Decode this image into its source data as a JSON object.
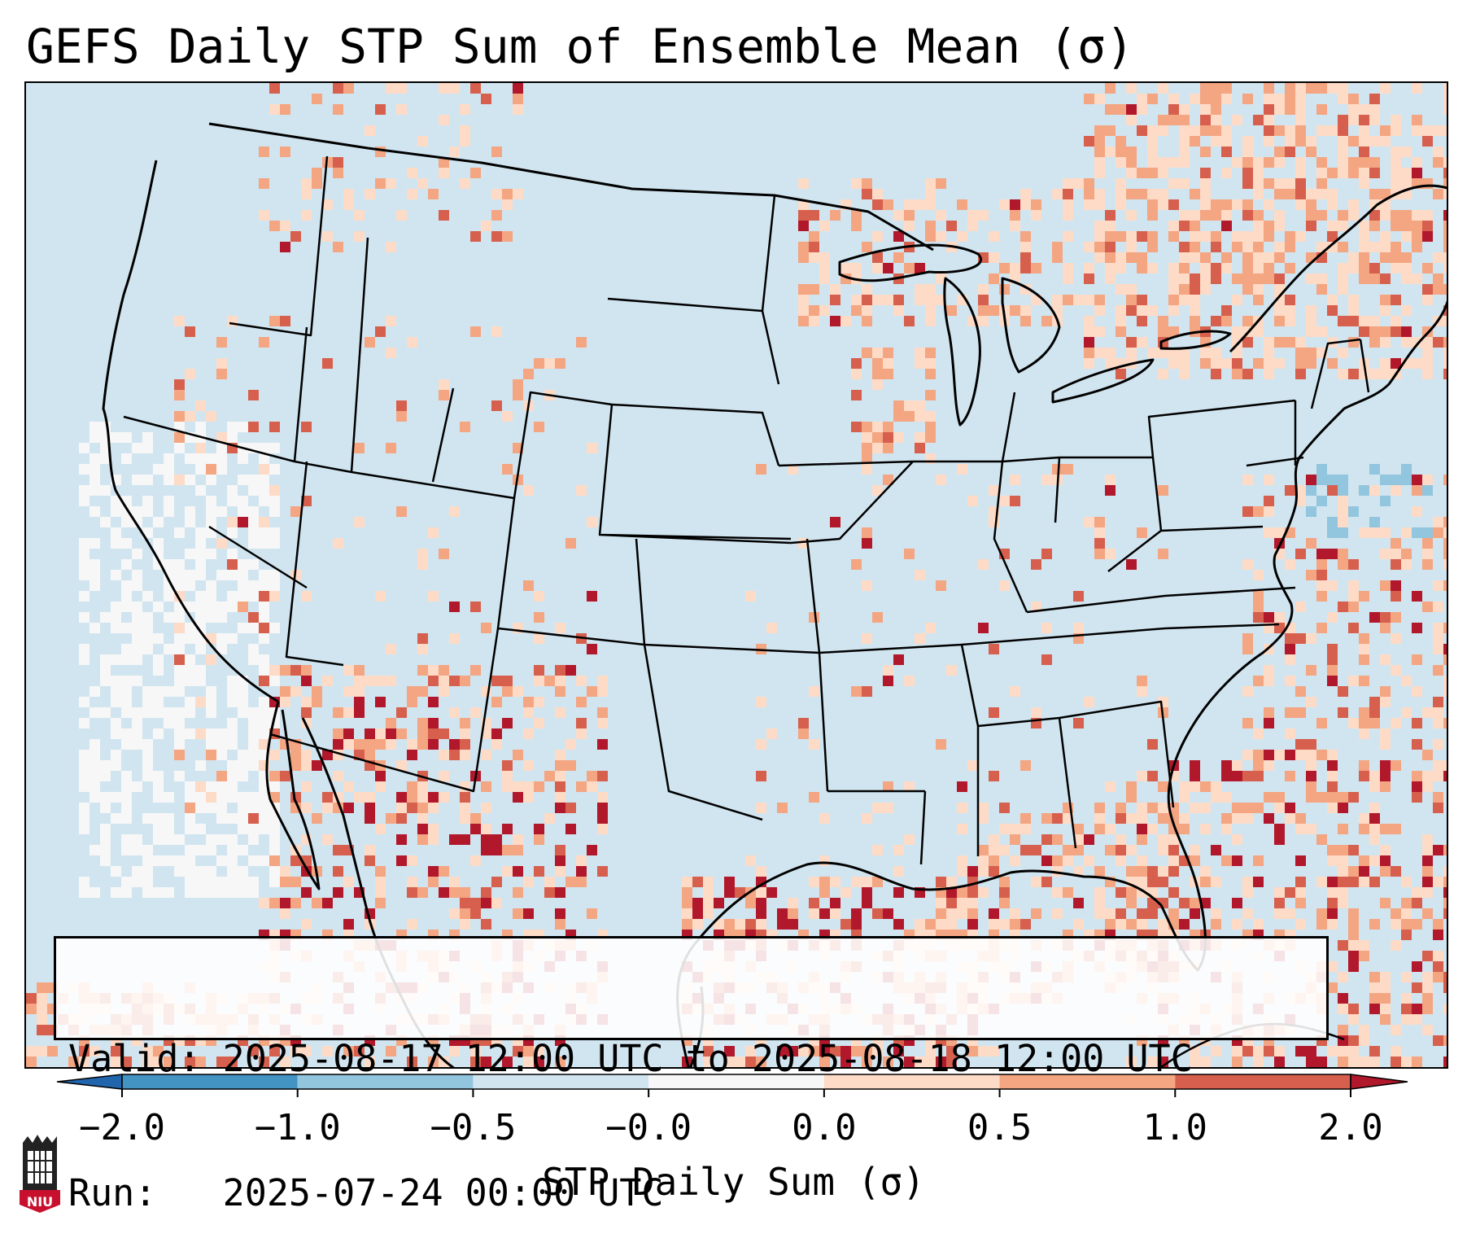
{
  "title": "GEFS Daily STP Sum of Ensemble Mean (σ)",
  "info": {
    "valid_line": "Valid: 2025-08-17 12:00 UTC to 2025-08-18 12:00 UTC",
    "run_line": "Run:   2025-07-24 00:00 UTC"
  },
  "colorbar": {
    "label": "STP Daily Sum (σ)",
    "ticks": [
      "−2.0",
      "−1.0",
      "−0.5",
      "−0.0",
      "0.0",
      "0.5",
      "1.0",
      "2.0"
    ],
    "colors": [
      "#2166ac",
      "#4393c3",
      "#92c5de",
      "#d1e5f0",
      "#f7f7f7",
      "#fddbc7",
      "#f4a582",
      "#d6604d",
      "#b2182b"
    ]
  },
  "map": {
    "region": "Continental United States",
    "ocean_color": "#d1e5f0",
    "boundary_color": "#000000"
  },
  "logo": {
    "text": "NIU",
    "color": "#c8102e"
  }
}
